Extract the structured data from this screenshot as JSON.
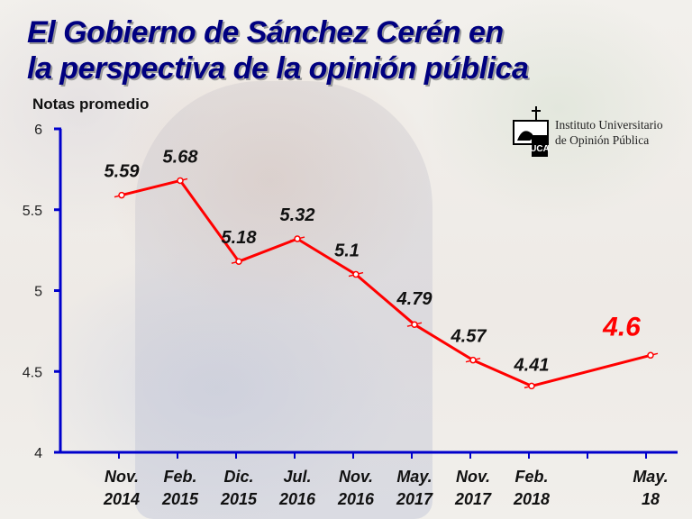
{
  "title_line1": "El Gobierno de Sánchez Cerén en",
  "title_line2": "la perspectiva de la opinión pública",
  "ylabel": "Notas promedio",
  "logo": {
    "line1": "Instituto Universitario",
    "line2": "de Opinión Pública",
    "mark_text": "UCA"
  },
  "chart_data": {
    "type": "line",
    "title": "El Gobierno de Sánchez Cerén en la perspectiva de la opinión pública",
    "ylabel": "Notas promedio",
    "xlabel": "",
    "ylim": [
      4,
      6
    ],
    "yticks": [
      "4",
      "4.5",
      "5",
      "5.5",
      "6"
    ],
    "categories": [
      [
        "Nov.",
        "2014"
      ],
      [
        "Feb.",
        "2015"
      ],
      [
        "Dic.",
        "2015"
      ],
      [
        "Jul.",
        "2016"
      ],
      [
        "Nov.",
        "2016"
      ],
      [
        "May.",
        "2017"
      ],
      [
        "Nov.",
        "2017"
      ],
      [
        "Feb.",
        "2018"
      ],
      [
        "May.",
        "18"
      ]
    ],
    "values": [
      5.59,
      5.68,
      5.18,
      5.32,
      5.1,
      4.79,
      4.57,
      4.41,
      4.6
    ],
    "labels": [
      "5.59",
      "5.68",
      "5.18",
      "5.32",
      "5.1",
      "4.79",
      "4.57",
      "4.41",
      "4.6"
    ],
    "line_color": "#ff0000",
    "axis_color": "#0000cc",
    "highlight_index": 8,
    "highlight_color": "#ff0000",
    "grid": false
  }
}
